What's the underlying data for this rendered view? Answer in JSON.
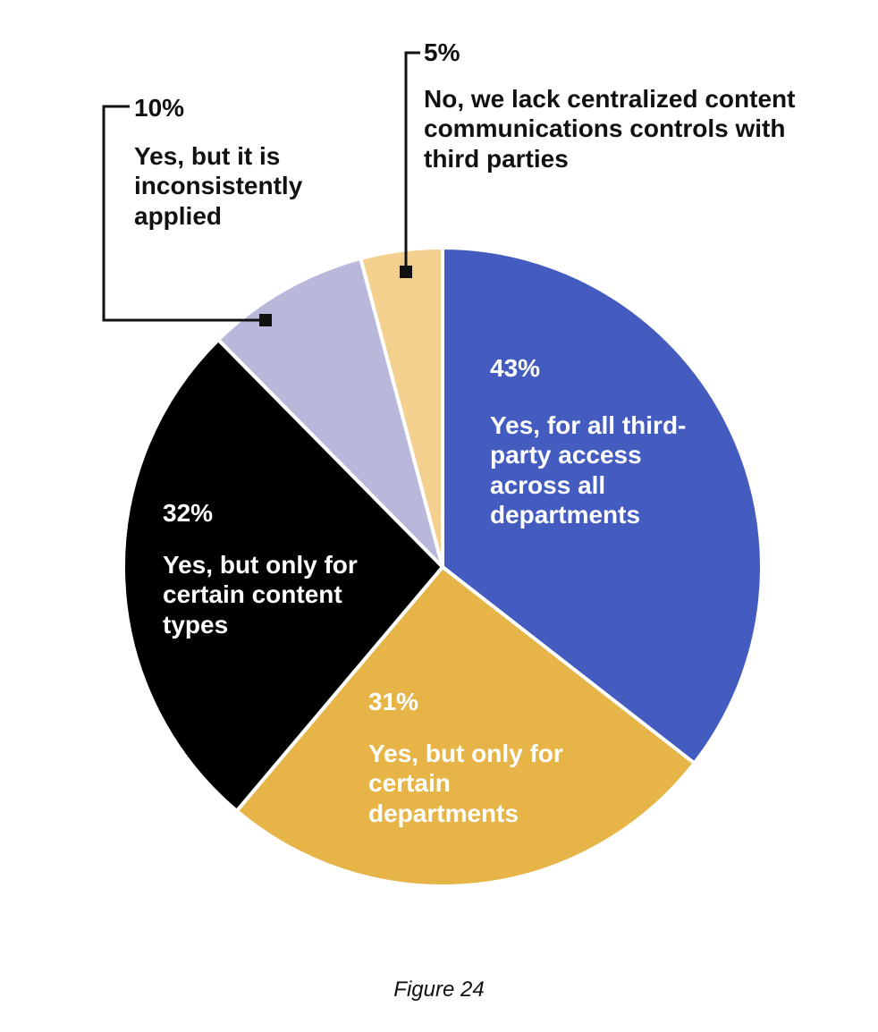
{
  "chart_data": {
    "type": "pie",
    "slices": [
      {
        "label": "Yes, for all third-party access across all departments",
        "percent_label": "43%",
        "value": 43,
        "color": "#445BBF"
      },
      {
        "label": "Yes, but only for certain departments",
        "percent_label": "31%",
        "value": 31,
        "color": "#E6B447"
      },
      {
        "label": "Yes, but only for certain content types",
        "percent_label": "32%",
        "value": 32,
        "color": "#000000"
      },
      {
        "label": "Yes, but it is inconsistently applied",
        "percent_label": "10%",
        "value": 10,
        "color": "#B8B8DA"
      },
      {
        "label": "No, we lack centralized content communications controls with third parties",
        "percent_label": "5%",
        "value": 5,
        "color": "#F3D08E"
      }
    ]
  },
  "caption": "Figure 24"
}
